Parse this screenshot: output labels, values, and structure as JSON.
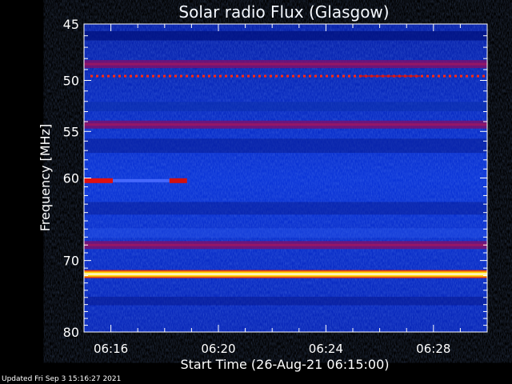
{
  "chart_data": {
    "type": "heatmap",
    "title": "Solar radio Flux (Glasgow)",
    "xlabel": "Start Time (26-Aug-21 06:15:00)",
    "ylabel": "Frequency [MHz]",
    "x_ticks": [
      "06:16",
      "06:20",
      "06:24",
      "06:28"
    ],
    "y_ticks": [
      45,
      50,
      55,
      60,
      70,
      80
    ],
    "x_range": [
      "06:15:00",
      "06:30:00"
    ],
    "y_range": [
      45,
      80
    ],
    "y_scale": "log",
    "colormap": [
      "#00007a",
      "#0a2fd6",
      "#3c6cff",
      "#7a1070",
      "#e01010",
      "#ffff00",
      "#ffffff"
    ],
    "features": [
      {
        "kind": "continuous band",
        "frequency_mhz": 48.5,
        "intensity": "moderate"
      },
      {
        "kind": "pulsed interference",
        "frequency_mhz": 49.6,
        "intensity": "high"
      },
      {
        "kind": "continuous band",
        "frequency_mhz": 54.3,
        "intensity": "moderate"
      },
      {
        "kind": "intermittent interference",
        "frequency_mhz": 60.3,
        "start": "06:15:00",
        "end": "06:18:50",
        "intensity": "high"
      },
      {
        "kind": "continuous band",
        "frequency_mhz": 68.0,
        "intensity": "moderate"
      },
      {
        "kind": "strong carrier",
        "frequency_mhz": 71.8,
        "intensity": "saturated"
      }
    ]
  },
  "footer": {
    "updated": "Updated Fri Sep  3 15:16:27 2021"
  }
}
